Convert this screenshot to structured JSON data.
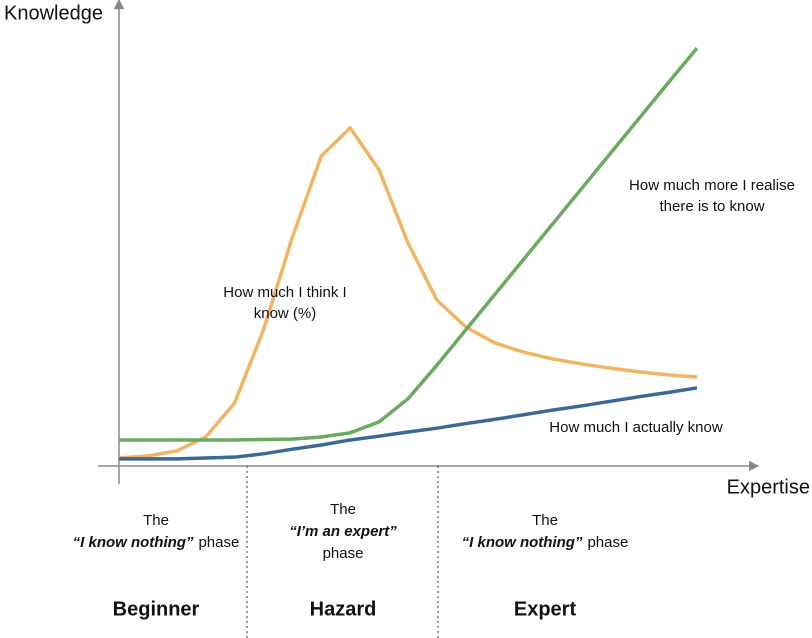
{
  "chart_data": {
    "type": "line",
    "x_label": "Expertise",
    "y_label": "Knowledge",
    "categories": [
      null,
      null,
      null,
      null,
      null,
      null,
      null,
      null,
      null,
      null,
      null,
      null,
      null,
      null,
      null,
      null,
      null,
      null,
      null,
      null,
      null
    ],
    "ylim": [
      0,
      100
    ],
    "series": [
      {
        "name": [
          "How much I think I",
          "know (%)"
        ],
        "color": "#f0b463",
        "values": [
          1.9,
          2.4,
          3.6,
          6.9,
          15,
          32.4,
          54.5,
          73.8,
          80.5,
          70.5,
          53.1,
          39.5,
          33.1,
          29.3,
          27.1,
          25.5,
          24.3,
          23.3,
          22.4,
          21.7,
          21.2
        ]
      },
      {
        "name": [
          "How much more I realise",
          "there is to know"
        ],
        "color": "#6aaa5f",
        "values": [
          6.2,
          6.2,
          6.2,
          6.2,
          6.2,
          6.3,
          6.4,
          6.9,
          7.9,
          10.5,
          16,
          24,
          32.4,
          40.8,
          49.2,
          57.6,
          66,
          74.4,
          82.8,
          91.2,
          99.5
        ]
      },
      {
        "name": [
          "How much I actually know"
        ],
        "color": "#3a6a93",
        "values": [
          1.7,
          1.7,
          1.7,
          1.9,
          2.1,
          2.9,
          4,
          5,
          6.2,
          7.1,
          8.1,
          9,
          10.1,
          11.1,
          12.2,
          13.3,
          14.3,
          15.4,
          16.5,
          17.5,
          18.6
        ]
      }
    ],
    "phases": [
      {
        "intro": "The",
        "emphasis": "“I know nothing”",
        "suffix": "phase",
        "label": "Beginner"
      },
      {
        "intro": "The",
        "emphasis": "“I’m an expert”",
        "suffix": "phase",
        "label": "Hazard"
      },
      {
        "intro": "The",
        "emphasis": "“I know nothing”",
        "suffix": "phase",
        "label": "Expert"
      }
    ]
  }
}
